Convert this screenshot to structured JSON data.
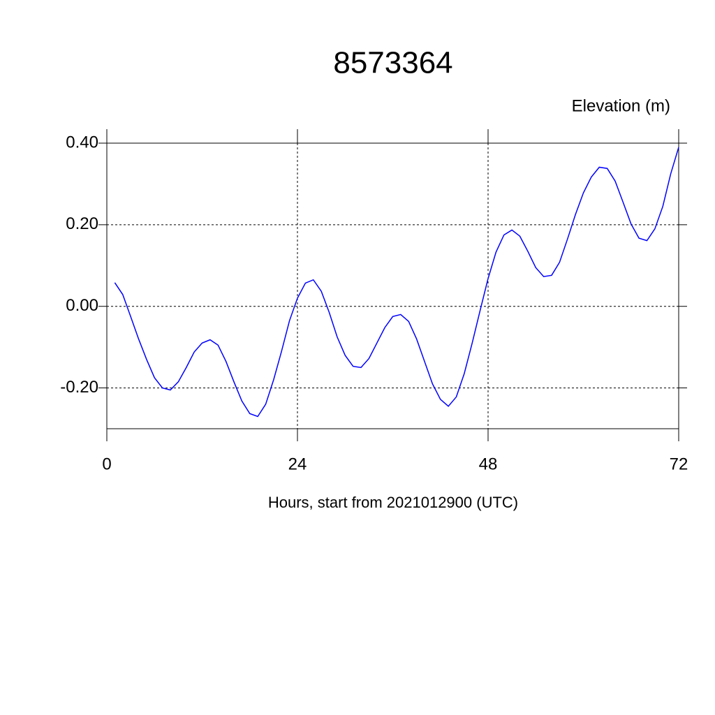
{
  "chart_data": {
    "type": "line",
    "title": "8573364",
    "subtitle": "Elevation (m)",
    "x_label": "Hours, start from 2021012900 (UTC)",
    "x": [
      1,
      2,
      3,
      4,
      5,
      6,
      7,
      8,
      9,
      10,
      11,
      12,
      13,
      14,
      15,
      16,
      17,
      18,
      19,
      20,
      21,
      22,
      23,
      24,
      25,
      26,
      27,
      28,
      29,
      30,
      31,
      32,
      33,
      34,
      35,
      36,
      37,
      38,
      39,
      40,
      41,
      42,
      43,
      44,
      45,
      46,
      47,
      48,
      49,
      50,
      51,
      52,
      53,
      54,
      55,
      56,
      57,
      58,
      59,
      60,
      61,
      62,
      63,
      64,
      65,
      66,
      67,
      68,
      69,
      70,
      71,
      72
    ],
    "series": [
      {
        "color": "#0000ff",
        "values": [
          0.058,
          0.029,
          -0.025,
          -0.08,
          -0.13,
          -0.175,
          -0.2,
          -0.205,
          -0.185,
          -0.15,
          -0.112,
          -0.09,
          -0.082,
          -0.095,
          -0.135,
          -0.185,
          -0.232,
          -0.263,
          -0.27,
          -0.24,
          -0.18,
          -0.11,
          -0.035,
          0.02,
          0.057,
          0.065,
          0.037,
          -0.015,
          -0.075,
          -0.12,
          -0.147,
          -0.15,
          -0.128,
          -0.09,
          -0.052,
          -0.025,
          -0.02,
          -0.037,
          -0.08,
          -0.135,
          -0.19,
          -0.228,
          -0.245,
          -0.222,
          -0.165,
          -0.09,
          -0.01,
          0.068,
          0.133,
          0.175,
          0.187,
          0.172,
          0.135,
          0.095,
          0.073,
          0.076,
          0.108,
          0.165,
          0.225,
          0.278,
          0.317,
          0.341,
          0.338,
          0.307,
          0.255,
          0.202,
          0.167,
          0.161,
          0.19,
          0.245,
          0.325,
          0.39
        ]
      }
    ],
    "xlim": [
      0,
      72
    ],
    "xticks": [
      0,
      24,
      48,
      72
    ],
    "ylim": [
      -0.3,
      0.4
    ],
    "yticks": [
      {
        "value": -0.2,
        "label": "-0.20"
      },
      {
        "value": 0,
        "label": "0.00"
      },
      {
        "value": 0.2,
        "label": "0.20"
      },
      {
        "value": 0.4,
        "label": "0.40"
      }
    ],
    "grid": true
  }
}
